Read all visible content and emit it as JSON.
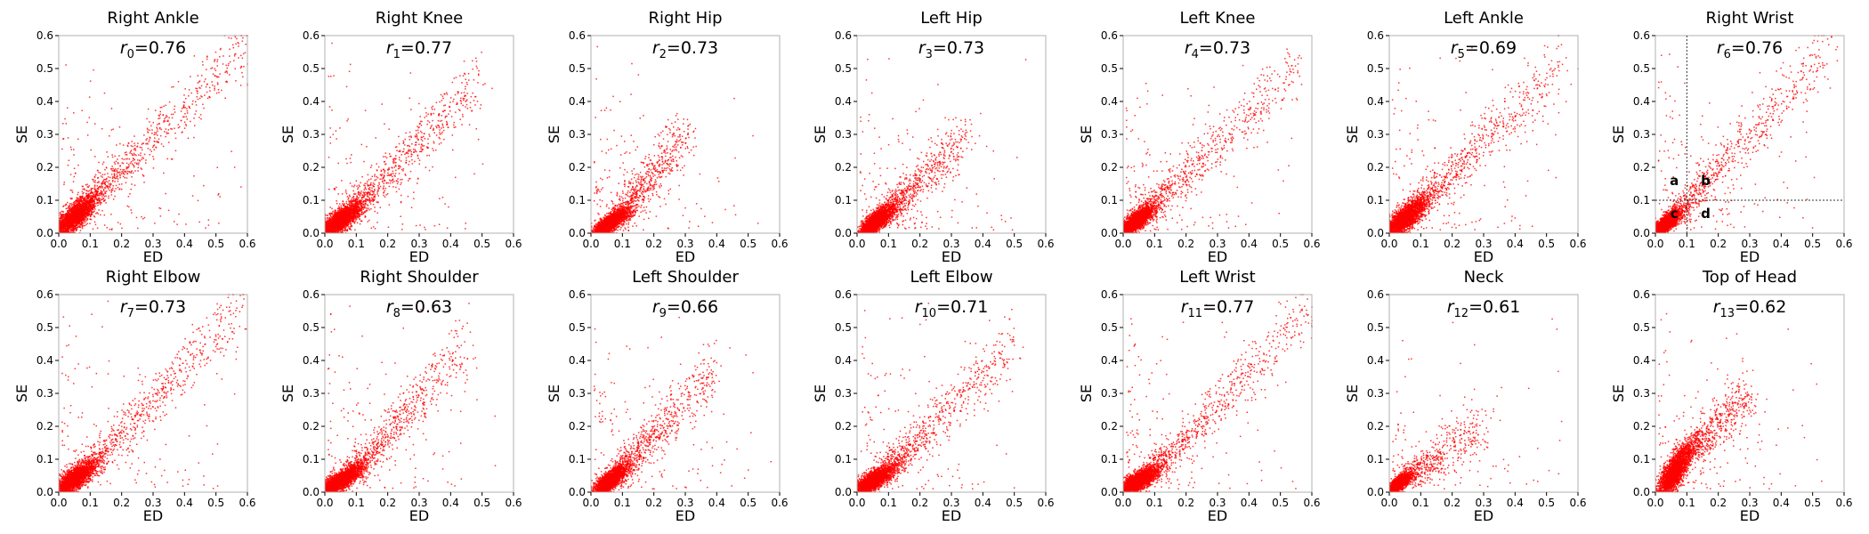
{
  "chart_data": [
    {
      "type": "scatter",
      "title": "Right Ankle",
      "xlabel": "ED",
      "ylabel": "SE",
      "xlim": [
        0,
        0.6
      ],
      "ylim": [
        0,
        0.6
      ],
      "ticks": [
        "0.0",
        "0.1",
        "0.2",
        "0.3",
        "0.4",
        "0.5",
        "0.6"
      ],
      "annotation": {
        "sym": "r",
        "sub": "0",
        "val": "=0.76"
      },
      "color": "#ff0000",
      "grid": false,
      "cluster": {
        "x": [
          0.0,
          0.1
        ],
        "y": [
          0.0,
          0.1
        ]
      },
      "trend": [
        [
          0.1,
          0.1
        ],
        [
          0.6,
          0.57
        ]
      ],
      "r": 0.76,
      "n_points": 3200,
      "seed": 11
    },
    {
      "type": "scatter",
      "title": "Right Knee",
      "xlabel": "ED",
      "ylabel": "SE",
      "xlim": [
        0,
        0.6
      ],
      "ylim": [
        0,
        0.6
      ],
      "ticks": [
        "0.0",
        "0.1",
        "0.2",
        "0.3",
        "0.4",
        "0.5",
        "0.6"
      ],
      "annotation": {
        "sym": "r",
        "sub": "1",
        "val": "=0.77"
      },
      "color": "#ff0000",
      "grid": false,
      "cluster": {
        "x": [
          0.0,
          0.1
        ],
        "y": [
          0.0,
          0.08
        ]
      },
      "trend": [
        [
          0.1,
          0.08
        ],
        [
          0.5,
          0.48
        ]
      ],
      "r": 0.77,
      "n_points": 3200,
      "seed": 12
    },
    {
      "type": "scatter",
      "title": "Right Hip",
      "xlabel": "ED",
      "ylabel": "SE",
      "xlim": [
        0,
        0.6
      ],
      "ylim": [
        0,
        0.6
      ],
      "ticks": [
        "0.0",
        "0.1",
        "0.2",
        "0.3",
        "0.4",
        "0.5",
        "0.6"
      ],
      "annotation": {
        "sym": "r",
        "sub": "2",
        "val": "=0.73"
      },
      "color": "#ff0000",
      "grid": false,
      "cluster": {
        "x": [
          0.02,
          0.1
        ],
        "y": [
          0.0,
          0.06
        ]
      },
      "trend": [
        [
          0.1,
          0.06
        ],
        [
          0.3,
          0.3
        ]
      ],
      "r": 0.73,
      "n_points": 3200,
      "seed": 13
    },
    {
      "type": "scatter",
      "title": "Left Hip",
      "xlabel": "ED",
      "ylabel": "SE",
      "xlim": [
        0,
        0.6
      ],
      "ylim": [
        0,
        0.6
      ],
      "ticks": [
        "0.0",
        "0.1",
        "0.2",
        "0.3",
        "0.4",
        "0.5",
        "0.6"
      ],
      "annotation": {
        "sym": "r",
        "sub": "3",
        "val": "=0.73"
      },
      "color": "#ff0000",
      "grid": false,
      "cluster": {
        "x": [
          0.02,
          0.1
        ],
        "y": [
          0.0,
          0.07
        ]
      },
      "trend": [
        [
          0.1,
          0.07
        ],
        [
          0.35,
          0.3
        ]
      ],
      "r": 0.73,
      "n_points": 3200,
      "seed": 14
    },
    {
      "type": "scatter",
      "title": "Left Knee",
      "xlabel": "ED",
      "ylabel": "SE",
      "xlim": [
        0,
        0.6
      ],
      "ylim": [
        0,
        0.6
      ],
      "ticks": [
        "0.0",
        "0.1",
        "0.2",
        "0.3",
        "0.4",
        "0.5",
        "0.6"
      ],
      "annotation": {
        "sym": "r",
        "sub": "4",
        "val": "=0.73"
      },
      "color": "#ff0000",
      "grid": false,
      "cluster": {
        "x": [
          0.0,
          0.08
        ],
        "y": [
          0.0,
          0.07
        ]
      },
      "trend": [
        [
          0.08,
          0.07
        ],
        [
          0.55,
          0.5
        ]
      ],
      "r": 0.73,
      "n_points": 3200,
      "seed": 15
    },
    {
      "type": "scatter",
      "title": "Left Ankle",
      "xlabel": "ED",
      "ylabel": "SE",
      "xlim": [
        0,
        0.6
      ],
      "ylim": [
        0,
        0.6
      ],
      "ticks": [
        "0.0",
        "0.1",
        "0.2",
        "0.3",
        "0.4",
        "0.5",
        "0.6"
      ],
      "annotation": {
        "sym": "r",
        "sub": "5",
        "val": "=0.69"
      },
      "color": "#ff0000",
      "grid": false,
      "cluster": {
        "x": [
          0.0,
          0.1
        ],
        "y": [
          0.0,
          0.09
        ]
      },
      "trend": [
        [
          0.1,
          0.09
        ],
        [
          0.55,
          0.52
        ]
      ],
      "r": 0.69,
      "n_points": 3200,
      "seed": 16
    },
    {
      "type": "scatter",
      "title": "Right Wrist",
      "xlabel": "ED",
      "ylabel": "SE",
      "xlim": [
        0,
        0.6
      ],
      "ylim": [
        0,
        0.6
      ],
      "ticks": [
        "0.0",
        "0.1",
        "0.2",
        "0.3",
        "0.4",
        "0.5",
        "0.6"
      ],
      "annotation": {
        "sym": "r",
        "sub": "6",
        "val": "=0.76"
      },
      "color": "#ff0000",
      "grid": false,
      "cluster": {
        "x": [
          0.0,
          0.07
        ],
        "y": [
          0.0,
          0.06
        ]
      },
      "trend": [
        [
          0.07,
          0.06
        ],
        [
          0.55,
          0.55
        ]
      ],
      "r": 0.76,
      "n_points": 3200,
      "seed": 17,
      "threshold_lines": {
        "x": 0.1,
        "y": 0.1
      },
      "quadrant_labels": [
        {
          "text": "a",
          "x": 0.06,
          "y": 0.16
        },
        {
          "text": "b",
          "x": 0.16,
          "y": 0.16
        },
        {
          "text": "c",
          "x": 0.06,
          "y": 0.06
        },
        {
          "text": "d",
          "x": 0.16,
          "y": 0.06
        }
      ]
    },
    {
      "type": "scatter",
      "title": "Right Elbow",
      "xlabel": "ED",
      "ylabel": "SE",
      "xlim": [
        0,
        0.6
      ],
      "ylim": [
        0,
        0.6
      ],
      "ticks": [
        "0.0",
        "0.1",
        "0.2",
        "0.3",
        "0.4",
        "0.5",
        "0.6"
      ],
      "annotation": {
        "sym": "r",
        "sub": "7",
        "val": "=0.73"
      },
      "color": "#ff0000",
      "grid": false,
      "cluster": {
        "x": [
          0.0,
          0.1
        ],
        "y": [
          0.0,
          0.08
        ]
      },
      "trend": [
        [
          0.1,
          0.08
        ],
        [
          0.58,
          0.56
        ]
      ],
      "r": 0.73,
      "n_points": 3200,
      "seed": 18
    },
    {
      "type": "scatter",
      "title": "Right Shoulder",
      "xlabel": "ED",
      "ylabel": "SE",
      "xlim": [
        0,
        0.6
      ],
      "ylim": [
        0,
        0.6
      ],
      "ticks": [
        "0.0",
        "0.1",
        "0.2",
        "0.3",
        "0.4",
        "0.5",
        "0.6"
      ],
      "annotation": {
        "sym": "r",
        "sub": "8",
        "val": "=0.63"
      },
      "color": "#ff0000",
      "grid": false,
      "cluster": {
        "x": [
          0.0,
          0.1
        ],
        "y": [
          0.0,
          0.07
        ]
      },
      "trend": [
        [
          0.1,
          0.07
        ],
        [
          0.45,
          0.45
        ]
      ],
      "r": 0.63,
      "n_points": 3200,
      "seed": 19
    },
    {
      "type": "scatter",
      "title": "Left Shoulder",
      "xlabel": "ED",
      "ylabel": "SE",
      "xlim": [
        0,
        0.6
      ],
      "ylim": [
        0,
        0.6
      ],
      "ticks": [
        "0.0",
        "0.1",
        "0.2",
        "0.3",
        "0.4",
        "0.5",
        "0.6"
      ],
      "annotation": {
        "sym": "r",
        "sub": "9",
        "val": "=0.66"
      },
      "color": "#ff0000",
      "grid": false,
      "cluster": {
        "x": [
          0.02,
          0.1
        ],
        "y": [
          0.0,
          0.07
        ]
      },
      "trend": [
        [
          0.1,
          0.07
        ],
        [
          0.4,
          0.38
        ]
      ],
      "r": 0.66,
      "n_points": 3200,
      "seed": 20
    },
    {
      "type": "scatter",
      "title": "Left Elbow",
      "xlabel": "ED",
      "ylabel": "SE",
      "xlim": [
        0,
        0.6
      ],
      "ylim": [
        0,
        0.6
      ],
      "ticks": [
        "0.0",
        "0.1",
        "0.2",
        "0.3",
        "0.4",
        "0.5",
        "0.6"
      ],
      "annotation": {
        "sym": "r",
        "sub": "10",
        "val": "=0.71"
      },
      "color": "#ff0000",
      "grid": false,
      "cluster": {
        "x": [
          0.0,
          0.1
        ],
        "y": [
          0.0,
          0.07
        ]
      },
      "trend": [
        [
          0.1,
          0.07
        ],
        [
          0.5,
          0.45
        ]
      ],
      "r": 0.71,
      "n_points": 3200,
      "seed": 21
    },
    {
      "type": "scatter",
      "title": "Left Wrist",
      "xlabel": "ED",
      "ylabel": "SE",
      "xlim": [
        0,
        0.6
      ],
      "ylim": [
        0,
        0.6
      ],
      "ticks": [
        "0.0",
        "0.1",
        "0.2",
        "0.3",
        "0.4",
        "0.5",
        "0.6"
      ],
      "annotation": {
        "sym": "r",
        "sub": "11",
        "val": "=0.77"
      },
      "color": "#ff0000",
      "grid": false,
      "cluster": {
        "x": [
          0.0,
          0.1
        ],
        "y": [
          0.0,
          0.07
        ]
      },
      "trend": [
        [
          0.1,
          0.07
        ],
        [
          0.6,
          0.55
        ]
      ],
      "r": 0.77,
      "n_points": 3200,
      "seed": 22
    },
    {
      "type": "scatter",
      "title": "Neck",
      "xlabel": "ED",
      "ylabel": "SE",
      "xlim": [
        0,
        0.6
      ],
      "ylim": [
        0,
        0.6
      ],
      "ticks": [
        "0.0",
        "0.1",
        "0.2",
        "0.3",
        "0.4",
        "0.5",
        "0.6"
      ],
      "annotation": {
        "sym": "r",
        "sub": "12",
        "val": "=0.61"
      },
      "color": "#ff0000",
      "grid": false,
      "cluster": {
        "x": [
          0.0,
          0.06
        ],
        "y": [
          0.0,
          0.05
        ]
      },
      "trend": [
        [
          0.06,
          0.05
        ],
        [
          0.3,
          0.2
        ]
      ],
      "r": 0.61,
      "n_points": 2400,
      "seed": 23
    },
    {
      "type": "scatter",
      "title": "Top of Head",
      "xlabel": "ED",
      "ylabel": "SE",
      "xlim": [
        0,
        0.6
      ],
      "ylim": [
        0,
        0.6
      ],
      "ticks": [
        "0.0",
        "0.1",
        "0.2",
        "0.3",
        "0.4",
        "0.5",
        "0.6"
      ],
      "annotation": {
        "sym": "r",
        "sub": "13",
        "val": "=0.62"
      },
      "color": "#ff0000",
      "grid": false,
      "cluster": {
        "x": [
          0.02,
          0.1
        ],
        "y": [
          0.0,
          0.12
        ]
      },
      "trend": [
        [
          0.1,
          0.12
        ],
        [
          0.3,
          0.3
        ]
      ],
      "r": 0.62,
      "n_points": 3200,
      "seed": 24
    }
  ]
}
